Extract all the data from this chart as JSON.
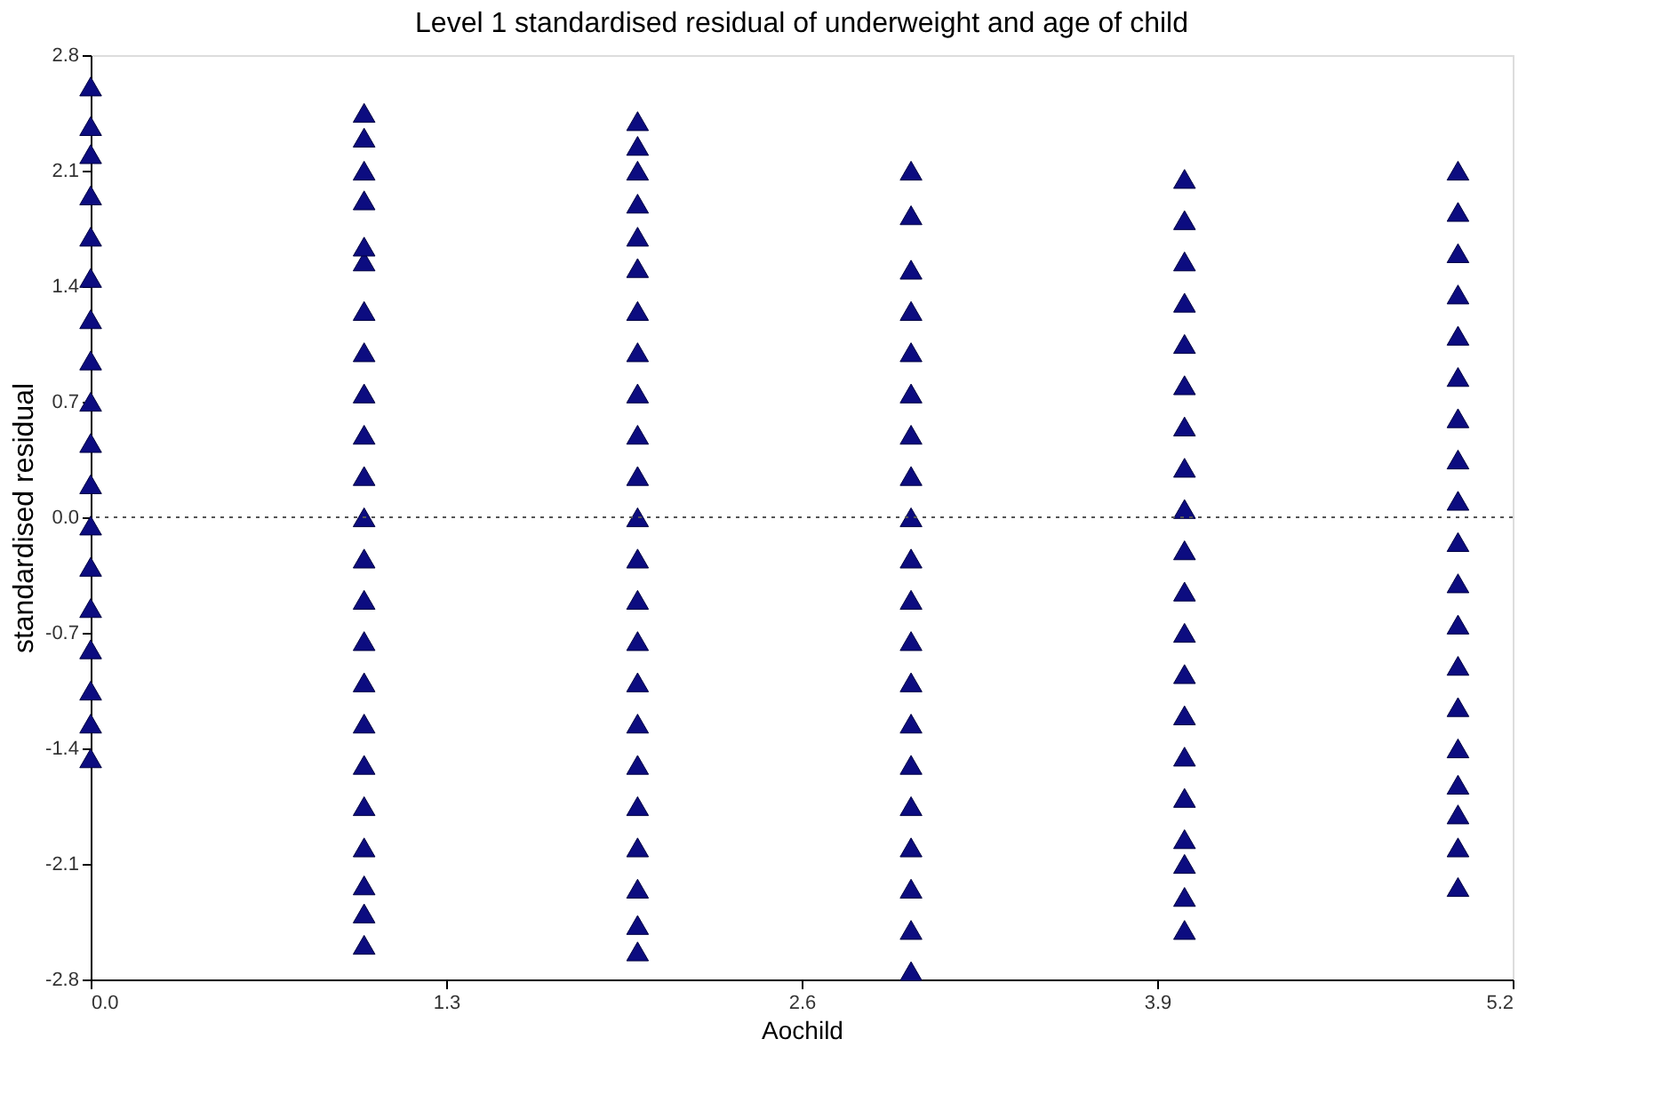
{
  "chart_data": {
    "type": "scatter",
    "title": "Level 1 standardised residual of underweight and age of child",
    "xlabel": "Aochild",
    "ylabel": "standardised residual",
    "x": [
      0,
      0,
      0,
      0,
      0,
      0,
      0,
      0,
      0,
      0,
      0,
      0,
      0,
      0,
      0,
      0,
      0,
      0,
      1,
      1,
      1,
      1,
      1,
      1,
      1,
      1,
      1,
      1,
      1,
      1,
      1,
      1,
      1,
      1,
      1,
      1,
      1,
      1,
      1,
      1,
      1,
      2,
      2,
      2,
      2,
      2,
      2,
      2,
      2,
      2,
      2,
      2,
      2,
      2,
      2,
      2,
      2,
      2,
      2,
      2,
      2,
      2,
      2,
      2,
      3,
      3,
      3,
      3,
      3,
      3,
      3,
      3,
      3,
      3,
      3,
      3,
      3,
      3,
      3,
      3,
      3,
      3,
      3,
      3,
      4,
      4,
      4,
      4,
      4,
      4,
      4,
      4,
      4,
      4,
      4,
      4,
      4,
      4,
      4,
      4,
      4,
      4,
      4,
      4,
      5,
      5,
      5,
      5,
      5,
      5,
      5,
      5,
      5,
      5,
      5,
      5,
      5,
      5,
      5,
      5,
      5,
      5,
      5
    ],
    "series": [
      {
        "color": "#0c0c80",
        "values": [
          -1.46,
          -1.25,
          -1.05,
          -0.8,
          -0.55,
          -0.3,
          -0.05,
          0.2,
          0.45,
          0.7,
          0.95,
          1.2,
          1.45,
          1.7,
          1.95,
          2.2,
          2.37,
          2.61,
          -2.59,
          -2.4,
          -2.23,
          -2.0,
          -1.75,
          -1.5,
          -1.25,
          -1.0,
          -0.75,
          -0.5,
          -0.25,
          0.0,
          0.25,
          0.5,
          0.75,
          1.0,
          1.25,
          1.55,
          1.64,
          1.92,
          2.1,
          2.3,
          2.45,
          -2.63,
          -2.47,
          -2.25,
          -2.0,
          -1.75,
          -1.5,
          -1.25,
          -1.0,
          -0.75,
          -0.5,
          -0.25,
          0.0,
          0.25,
          0.5,
          0.75,
          1.0,
          1.25,
          1.51,
          1.7,
          1.9,
          2.1,
          2.25,
          2.4,
          -2.75,
          -2.5,
          -2.25,
          -2.0,
          -1.75,
          -1.5,
          -1.25,
          -1.0,
          -0.75,
          -0.5,
          -0.25,
          0.0,
          0.25,
          0.5,
          0.75,
          1.0,
          1.25,
          1.5,
          1.83,
          2.1,
          -2.5,
          -2.3,
          -2.1,
          -1.95,
          -1.7,
          -1.45,
          -1.2,
          -0.95,
          -0.7,
          -0.45,
          -0.2,
          0.05,
          0.3,
          0.55,
          0.8,
          1.05,
          1.3,
          1.55,
          1.8,
          2.05,
          -2.24,
          -2.0,
          -1.8,
          -1.62,
          -1.4,
          -1.15,
          -0.9,
          -0.65,
          -0.4,
          -0.15,
          0.1,
          0.35,
          0.6,
          0.85,
          1.1,
          1.35,
          1.6,
          1.85,
          2.1
        ]
      }
    ],
    "marker": "triangle",
    "xlim": [
      0,
      5.2
    ],
    "xticks": [
      {
        "value": 0,
        "label": "0.0"
      },
      1.3,
      2.6,
      3.9,
      5.2
    ],
    "ylim": [
      -2.8,
      2.8
    ],
    "yticks": [
      -2.8,
      -2.1,
      -1.4,
      -0.7,
      {
        "value": 0,
        "label": "0.0"
      },
      0.7,
      1.4,
      2.1,
      2.8
    ],
    "ref_lines": [
      {
        "axis": "y",
        "value": 0,
        "line_style": "dotted",
        "color": "#555555"
      }
    ],
    "grid": false
  }
}
